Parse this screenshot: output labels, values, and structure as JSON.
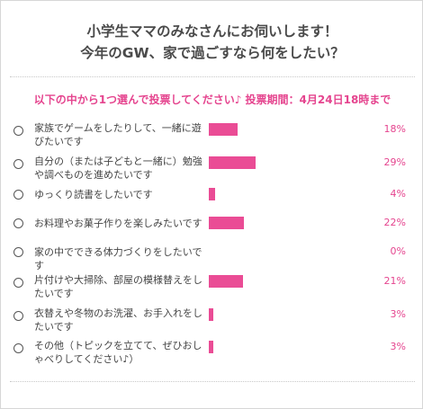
{
  "poll": {
    "title_line1": "小学生ママのみなさんにお伺いします！",
    "title_line2": "今年のGW、家で過ごすなら何をしたい？",
    "instruction": "以下の中から1つ選んで投票してください♪ 投票期間：4月24日18時まで",
    "options": [
      {
        "label": "家族でゲームをしたりして、一緒に遊びたいです",
        "percent": 18,
        "percent_label": "18%"
      },
      {
        "label": "自分の（または子どもと一緒に）勉強や調べものを進めたいです",
        "percent": 29,
        "percent_label": "29%"
      },
      {
        "label": "ゆっくり読書をしたいです",
        "percent": 4,
        "percent_label": "4%"
      },
      {
        "label": "お料理やお菓子作りを楽しみたいです",
        "percent": 22,
        "percent_label": "22%"
      },
      {
        "label": "家の中でできる体力づくりをしたいです",
        "percent": 0,
        "percent_label": "0%"
      },
      {
        "label": "片付けや大掃除、部屋の模様替えをしたいです",
        "percent": 21,
        "percent_label": "21%"
      },
      {
        "label": "衣替えや冬物のお洗濯、お手入れをしたいです",
        "percent": 3,
        "percent_label": "3%"
      },
      {
        "label": "その他（トピックを立てて、ぜひおしゃべりしてください♪）",
        "percent": 3,
        "percent_label": "3%"
      }
    ]
  },
  "colors": {
    "accent": "#e5458f",
    "bar": "#ea4c95",
    "title": "#4a4a4a",
    "text": "#444444",
    "border": "#d6d6d6"
  }
}
